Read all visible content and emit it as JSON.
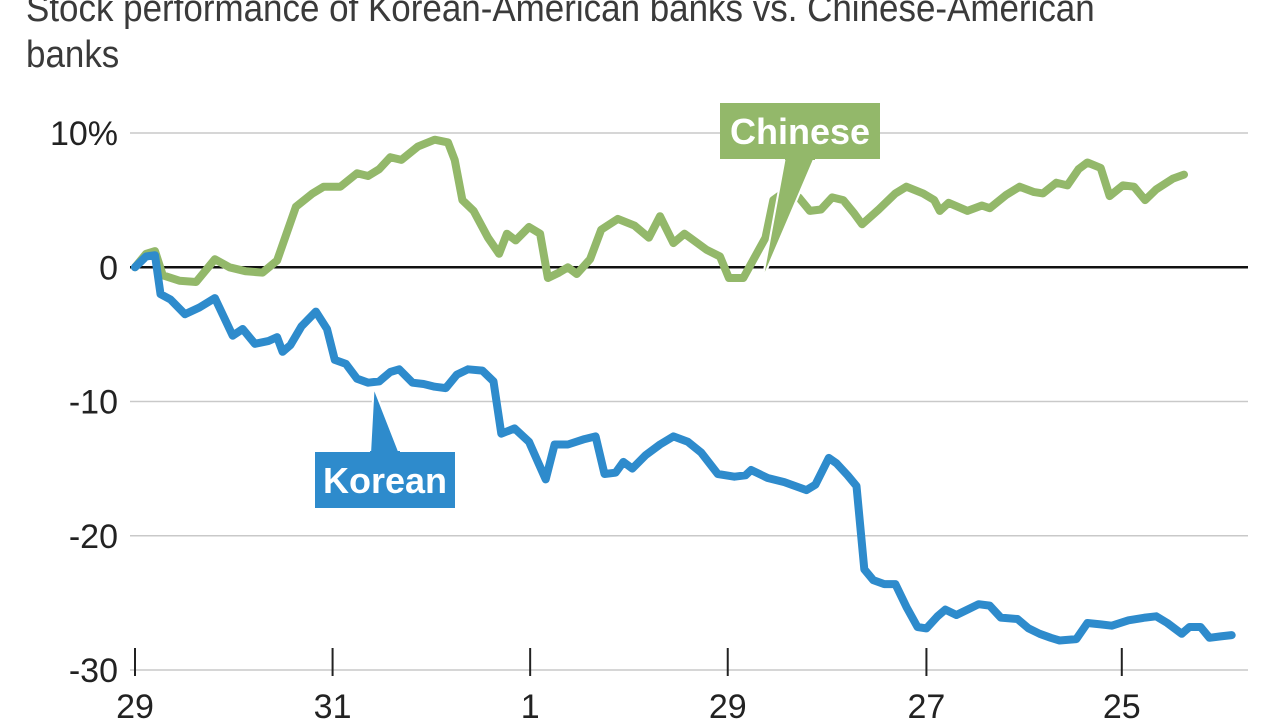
{
  "chart_data": {
    "type": "line",
    "title": "Stock performance of Korean-American banks vs. Chinese-American banks",
    "xlabel": "",
    "ylabel": "",
    "ylim": [
      -30,
      10
    ],
    "y_ticks": [
      {
        "value": 10,
        "label": "10%"
      },
      {
        "value": 0,
        "label": "0"
      },
      {
        "value": -10,
        "label": "-10"
      },
      {
        "value": -20,
        "label": "-20"
      },
      {
        "value": -30,
        "label": "-30"
      }
    ],
    "x_range": [
      0,
      100
    ],
    "x_ticks": [
      {
        "value": 0,
        "label": "29"
      },
      {
        "value": 17.8,
        "label": "31"
      },
      {
        "value": 35.6,
        "label": "1"
      },
      {
        "value": 53.4,
        "label": "29"
      },
      {
        "value": 71.3,
        "label": "27"
      },
      {
        "value": 88.9,
        "label": "25"
      }
    ],
    "grid": true,
    "legend": "inline labels",
    "series": [
      {
        "name": "Chinese",
        "color": "#93b86a",
        "points": [
          [
            0,
            0
          ],
          [
            1,
            1
          ],
          [
            1.8,
            1.2
          ],
          [
            2.5,
            -0.6
          ],
          [
            4,
            -1
          ],
          [
            5.5,
            -1.1
          ],
          [
            7.2,
            0.6
          ],
          [
            8.5,
            0
          ],
          [
            10,
            -0.3
          ],
          [
            11.5,
            -0.4
          ],
          [
            12.8,
            0.5
          ],
          [
            14.5,
            4.5
          ],
          [
            16,
            5.5
          ],
          [
            17,
            6
          ],
          [
            18.5,
            6
          ],
          [
            20,
            7
          ],
          [
            21,
            6.8
          ],
          [
            22,
            7.3
          ],
          [
            23,
            8.2
          ],
          [
            24,
            8
          ],
          [
            25.5,
            9
          ],
          [
            27,
            9.5
          ],
          [
            28.2,
            9.3
          ],
          [
            28.8,
            8
          ],
          [
            29.5,
            5
          ],
          [
            30.5,
            4.2
          ],
          [
            31.8,
            2.2
          ],
          [
            32.8,
            1
          ],
          [
            33.5,
            2.5
          ],
          [
            34.3,
            2
          ],
          [
            35.5,
            3
          ],
          [
            36.5,
            2.5
          ],
          [
            37.2,
            -0.8
          ],
          [
            38.2,
            -0.4
          ],
          [
            39,
            0
          ],
          [
            39.8,
            -0.5
          ],
          [
            41,
            0.6
          ],
          [
            42,
            2.8
          ],
          [
            43.5,
            3.6
          ],
          [
            45,
            3.1
          ],
          [
            46.3,
            2.2
          ],
          [
            47.3,
            3.8
          ],
          [
            48.5,
            1.8
          ],
          [
            49.5,
            2.5
          ],
          [
            50.5,
            1.9
          ],
          [
            51.5,
            1.3
          ],
          [
            52.7,
            0.8
          ],
          [
            53.5,
            -0.8
          ],
          [
            54.8,
            -0.8
          ],
          [
            56,
            1
          ],
          [
            56.8,
            2.2
          ],
          [
            57.5,
            5
          ],
          [
            58.5,
            5.6
          ],
          [
            59.8,
            5.2
          ],
          [
            60.8,
            4.2
          ],
          [
            61.8,
            4.3
          ],
          [
            62.8,
            5.2
          ],
          [
            63.8,
            5
          ],
          [
            64.8,
            4
          ],
          [
            65.5,
            3.2
          ],
          [
            67,
            4.3
          ],
          [
            68.5,
            5.5
          ],
          [
            69.5,
            6
          ],
          [
            71,
            5.5
          ],
          [
            72,
            5
          ],
          [
            72.5,
            4.2
          ],
          [
            73.3,
            4.8
          ],
          [
            75,
            4.2
          ],
          [
            76.3,
            4.6
          ],
          [
            77,
            4.4
          ],
          [
            78.5,
            5.4
          ],
          [
            79.7,
            6
          ],
          [
            81,
            5.6
          ],
          [
            81.8,
            5.5
          ],
          [
            83,
            6.3
          ],
          [
            84,
            6.1
          ],
          [
            85,
            7.3
          ],
          [
            85.8,
            7.8
          ],
          [
            87,
            7.4
          ],
          [
            87.8,
            5.3
          ],
          [
            89,
            6.1
          ],
          [
            90,
            6
          ],
          [
            91,
            5
          ],
          [
            92,
            5.8
          ],
          [
            93.5,
            6.6
          ],
          [
            94.5,
            6.9
          ]
        ]
      },
      {
        "name": "Korean",
        "color": "#2e8bcc",
        "points": [
          [
            0,
            0
          ],
          [
            1,
            0.8
          ],
          [
            1.8,
            0.9
          ],
          [
            2.3,
            -2
          ],
          [
            3.2,
            -2.4
          ],
          [
            4.5,
            -3.5
          ],
          [
            5.8,
            -3
          ],
          [
            7.2,
            -2.3
          ],
          [
            8.8,
            -5.1
          ],
          [
            9.7,
            -4.6
          ],
          [
            10.8,
            -5.7
          ],
          [
            12,
            -5.5
          ],
          [
            12.8,
            -5.2
          ],
          [
            13.3,
            -6.3
          ],
          [
            14,
            -5.8
          ],
          [
            15,
            -4.4
          ],
          [
            16.3,
            -3.3
          ],
          [
            17.3,
            -4.6
          ],
          [
            18,
            -6.9
          ],
          [
            19,
            -7.2
          ],
          [
            20,
            -8.3
          ],
          [
            21,
            -8.6
          ],
          [
            22,
            -8.5
          ],
          [
            23,
            -7.8
          ],
          [
            23.8,
            -7.6
          ],
          [
            25,
            -8.6
          ],
          [
            26,
            -8.7
          ],
          [
            27,
            -8.9
          ],
          [
            28,
            -9
          ],
          [
            29,
            -8
          ],
          [
            30,
            -7.6
          ],
          [
            31.3,
            -7.7
          ],
          [
            32.3,
            -8.5
          ],
          [
            33,
            -12.4
          ],
          [
            34.2,
            -12
          ],
          [
            35.5,
            -13
          ],
          [
            36.3,
            -14.5
          ],
          [
            37,
            -15.8
          ],
          [
            37.8,
            -13.2
          ],
          [
            39,
            -13.2
          ],
          [
            40.5,
            -12.8
          ],
          [
            41.5,
            -12.6
          ],
          [
            42.3,
            -15.4
          ],
          [
            43.3,
            -15.3
          ],
          [
            44,
            -14.5
          ],
          [
            44.8,
            -15
          ],
          [
            46,
            -14
          ],
          [
            47.3,
            -13.2
          ],
          [
            48.5,
            -12.6
          ],
          [
            49.8,
            -13
          ],
          [
            51,
            -13.8
          ],
          [
            52.5,
            -15.4
          ],
          [
            54,
            -15.6
          ],
          [
            55,
            -15.5
          ],
          [
            55.5,
            -15.1
          ],
          [
            57,
            -15.7
          ],
          [
            58.5,
            -16
          ],
          [
            59.5,
            -16.3
          ],
          [
            60.5,
            -16.6
          ],
          [
            61.3,
            -16.2
          ],
          [
            62.5,
            -14.2
          ],
          [
            63.2,
            -14.6
          ],
          [
            64.2,
            -15.5
          ],
          [
            65,
            -16.3
          ],
          [
            65.7,
            -22.5
          ],
          [
            66.5,
            -23.3
          ],
          [
            67.5,
            -23.6
          ],
          [
            68.5,
            -23.6
          ],
          [
            69.5,
            -25.3
          ],
          [
            70.5,
            -26.8
          ],
          [
            71.3,
            -26.9
          ],
          [
            72.3,
            -26
          ],
          [
            73,
            -25.5
          ],
          [
            74,
            -25.9
          ],
          [
            75,
            -25.5
          ],
          [
            76,
            -25.1
          ],
          [
            77,
            -25.2
          ],
          [
            78,
            -26.1
          ],
          [
            79.5,
            -26.2
          ],
          [
            80.5,
            -26.9
          ],
          [
            81.5,
            -27.3
          ],
          [
            82.5,
            -27.6
          ],
          [
            83.3,
            -27.8
          ],
          [
            84.8,
            -27.7
          ],
          [
            85.8,
            -26.5
          ],
          [
            87,
            -26.6
          ],
          [
            88,
            -26.7
          ],
          [
            89.5,
            -26.3
          ],
          [
            91,
            -26.1
          ],
          [
            92,
            -26
          ],
          [
            93,
            -26.5
          ],
          [
            94.3,
            -27.3
          ],
          [
            95,
            -26.8
          ],
          [
            96,
            -26.8
          ],
          [
            96.8,
            -27.6
          ],
          [
            97.8,
            -27.5
          ],
          [
            98.8,
            -27.4
          ]
        ]
      }
    ],
    "annotations": [
      {
        "series": "Chinese",
        "text": "Chinese",
        "at_x": 56.5,
        "at_y": -1.0
      },
      {
        "series": "Korean",
        "text": "Korean",
        "at_x": 21.5,
        "at_y": -8.9
      }
    ]
  }
}
